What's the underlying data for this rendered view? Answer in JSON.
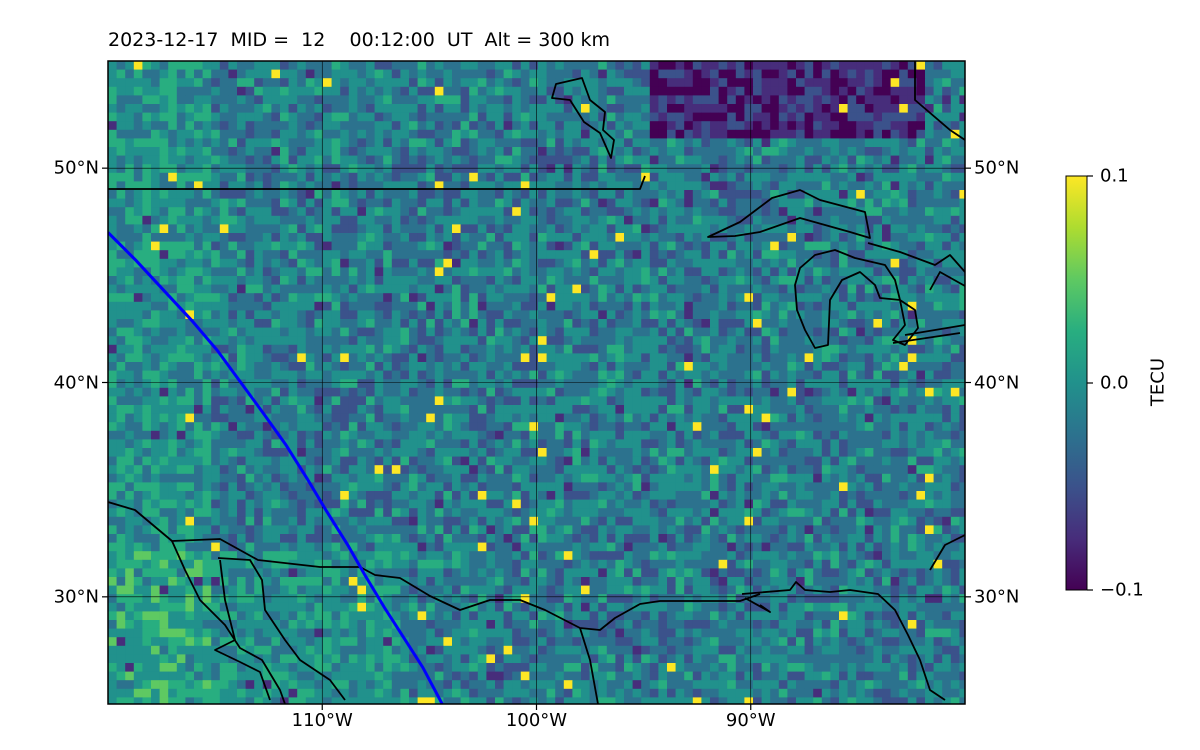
{
  "title": "2023-12-17  MID =  12    00:12:00  UT  Alt = 300 km",
  "map": {
    "lon_range": [
      -120,
      -80
    ],
    "lat_range": [
      25,
      55
    ],
    "lon_ticks": [
      {
        "value": -110,
        "label": "110°W"
      },
      {
        "value": -100,
        "label": "100°W"
      },
      {
        "value": -90,
        "label": "90°W"
      }
    ],
    "lat_ticks": [
      {
        "value": 50,
        "label": "50°N"
      },
      {
        "value": 40,
        "label": "40°N"
      },
      {
        "value": 30,
        "label": "30°N"
      }
    ],
    "grid": true,
    "field": "TEC anomaly",
    "track_color": "#0000ff",
    "track": [
      [
        -120,
        47
      ],
      [
        -118.7,
        45.7
      ],
      [
        -117.4,
        44.3
      ],
      [
        -116.1,
        42.9
      ],
      [
        -114.9,
        41.5
      ],
      [
        -113.8,
        40.0
      ],
      [
        -112.7,
        38.5
      ],
      [
        -111.7,
        37.1
      ],
      [
        -110.7,
        35.5
      ],
      [
        -109.8,
        34.0
      ],
      [
        -108.8,
        32.4
      ],
      [
        -108.0,
        31.0
      ],
      [
        -107.1,
        29.5
      ],
      [
        -106.2,
        28.1
      ],
      [
        -105.3,
        26.7
      ],
      [
        -104.4,
        25.0
      ]
    ]
  },
  "colorbar": {
    "colormap": "viridis",
    "min": -0.1,
    "max": 0.1,
    "ticks": [
      {
        "value": 0.1,
        "label": "0.1"
      },
      {
        "value": 0.0,
        "label": "0.0"
      },
      {
        "value": -0.1,
        "label": "−0.1"
      }
    ],
    "label": "TECU"
  }
}
